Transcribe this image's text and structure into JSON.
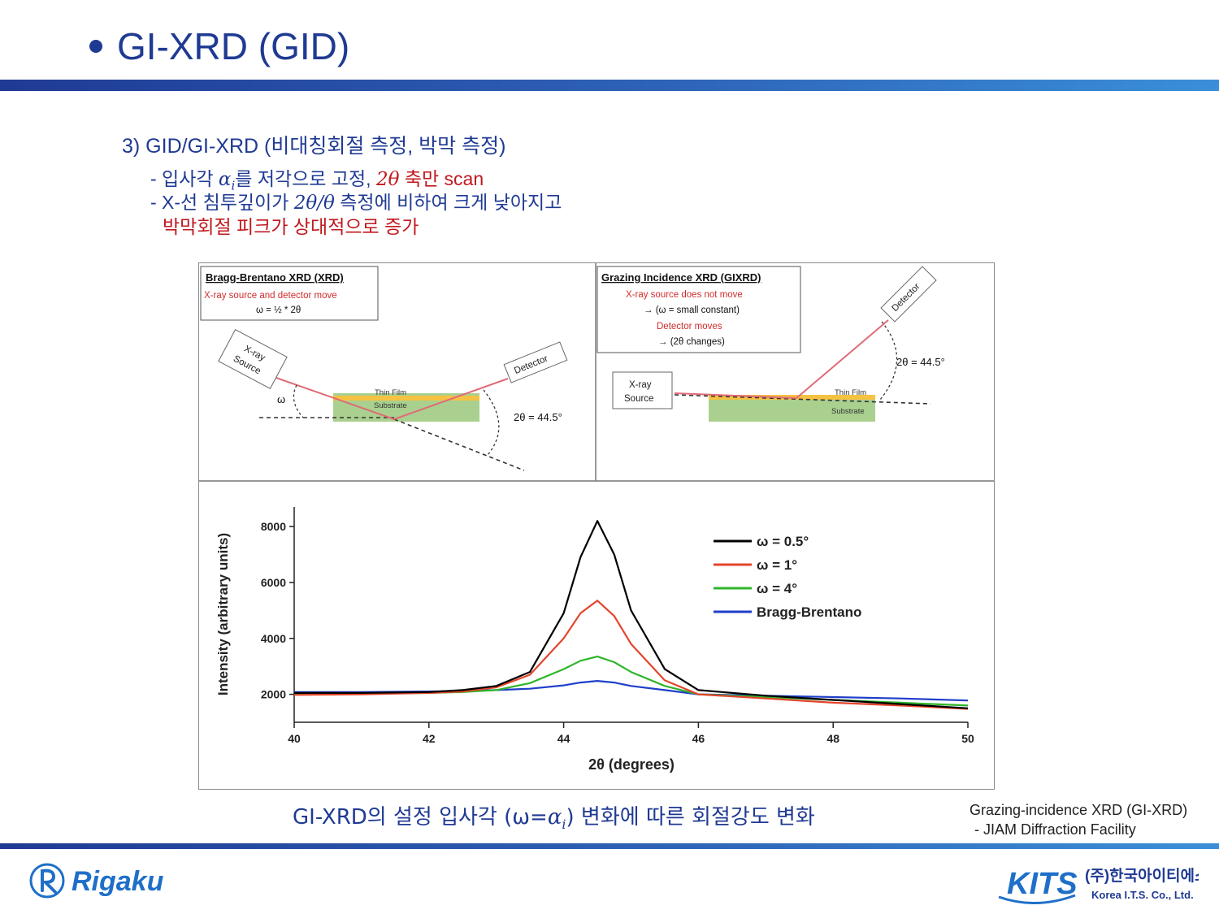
{
  "header": {
    "title": "GI-XRD (GID)"
  },
  "section": {
    "heading": "3) GID/GI-XRD (비대칭회절 측정, 박막 측정)"
  },
  "bullets": {
    "b1_pre": "- 입사각 ",
    "b1_math": "α",
    "b1_sub": "i",
    "b1_mid": "를 저각으로 고정, ",
    "b1_math2": "2θ",
    "b1_post": " 축만 scan",
    "b2_pre": "- X-선 침투깊이가 ",
    "b2_math": "2θ/θ",
    "b2_post": " 측정에 비하여 크게 낮아지고",
    "b3": "박막회절 피크가 상대적으로 증가"
  },
  "diagram_left": {
    "box_title": "Bragg-Brentano XRD (XRD)",
    "box_line1": "X-ray source and detector move",
    "box_line2": "ω = ½ * 2θ",
    "source_1": "X-ray",
    "source_2": "Source",
    "detector": "Detector",
    "film": "Thin Film",
    "substrate": "Substrate",
    "omega": "ω",
    "angle": "2θ = 44.5°"
  },
  "diagram_right": {
    "box_title": "Grazing Incidence XRD (GIXRD)",
    "box_line1": "X-ray source does not move",
    "box_line2": "→ (ω = small constant)",
    "box_line3": "Detector moves",
    "box_line4": "→ (2θ changes)",
    "source_1": "X-ray",
    "source_2": "Source",
    "detector": "Detector",
    "film": "Thin Film",
    "substrate": "Substrate",
    "angle": "2θ = 44.5°"
  },
  "chart_data": {
    "type": "line",
    "xlabel": "2θ (degrees)",
    "ylabel": "Intensity (arbitrary units)",
    "xlim": [
      40,
      50
    ],
    "ylim": [
      1000,
      8700
    ],
    "xticks": [
      40,
      42,
      44,
      46,
      48,
      50
    ],
    "yticks": [
      2000,
      4000,
      6000,
      8000
    ],
    "legend_position": "top-right",
    "x": [
      40,
      41,
      42,
      42.5,
      43,
      43.5,
      44,
      44.25,
      44.5,
      44.75,
      45,
      45.5,
      46,
      47,
      48,
      49,
      50
    ],
    "series": [
      {
        "name": "ω = 0.5°",
        "color": "#000000",
        "values": [
          2050,
          2050,
          2080,
          2150,
          2300,
          2800,
          4900,
          6900,
          8200,
          7000,
          5000,
          2900,
          2150,
          1950,
          1800,
          1650,
          1500
        ]
      },
      {
        "name": "ω = 1°",
        "color": "#e3452b",
        "values": [
          1980,
          2000,
          2050,
          2100,
          2250,
          2700,
          4000,
          4900,
          5350,
          4800,
          3800,
          2500,
          2000,
          1850,
          1700,
          1600,
          1480
        ]
      },
      {
        "name": "ω = 4°",
        "color": "#2fb52b",
        "values": [
          2000,
          2020,
          2050,
          2080,
          2150,
          2400,
          2900,
          3200,
          3350,
          3150,
          2800,
          2300,
          2000,
          1900,
          1800,
          1700,
          1600
        ]
      },
      {
        "name": "Bragg-Brentano",
        "color": "#1f3fc9",
        "values": [
          2080,
          2080,
          2100,
          2120,
          2150,
          2200,
          2320,
          2420,
          2480,
          2420,
          2300,
          2150,
          2000,
          1950,
          1900,
          1850,
          1780
        ]
      }
    ]
  },
  "caption": {
    "pre": "GI-XRD의 설정 입사각 (ω=",
    "math": "α",
    "sub": "i",
    "post": ") 변화에 따른 회절강도 변화"
  },
  "credit": {
    "line1": "Grazing-incidence XRD (GI-XRD)",
    "line2": "- JIAM Diffraction Facility"
  },
  "logos": {
    "rigaku": "Rigaku",
    "kits": "KITS",
    "kits_korean": "(주)한국아이티에스",
    "kits_english": "Korea I.T.S. Co., Ltd."
  }
}
